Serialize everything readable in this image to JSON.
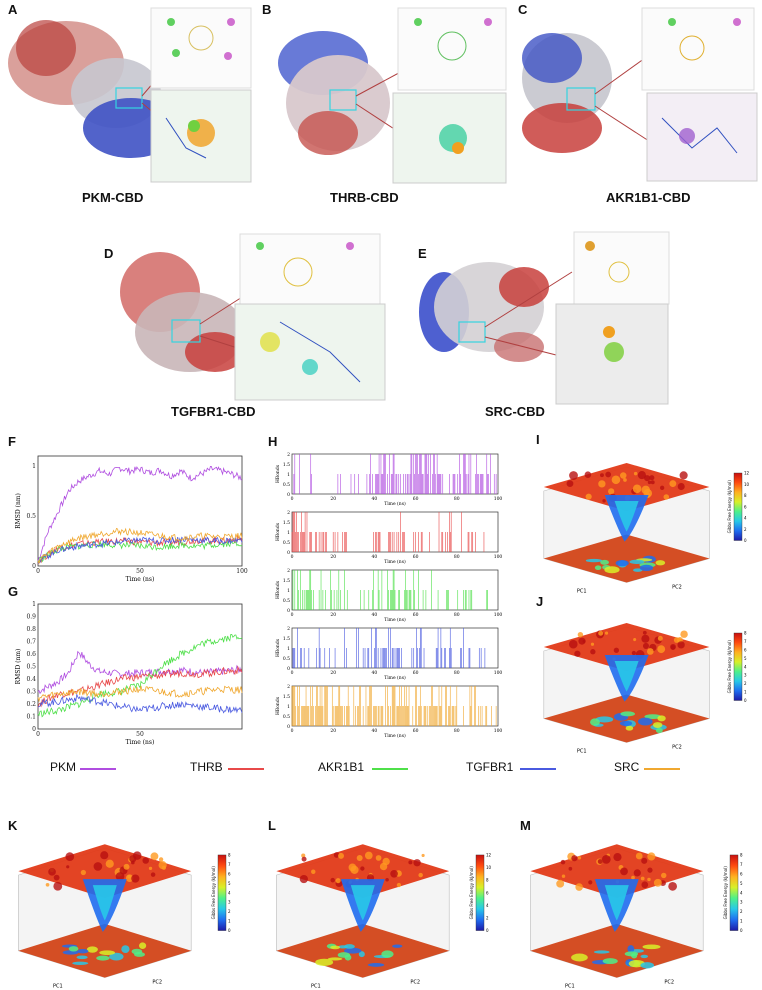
{
  "panels": {
    "A": {
      "letter": "A",
      "caption": "PKM-CBD"
    },
    "B": {
      "letter": "B",
      "caption": "THRB-CBD"
    },
    "C": {
      "letter": "C",
      "caption": "AKR1B1-CBD"
    },
    "D": {
      "letter": "D",
      "caption": "TGFBR1-CBD"
    },
    "E": {
      "letter": "E",
      "caption": "SRC-CBD"
    },
    "F": {
      "letter": "F"
    },
    "G": {
      "letter": "G"
    },
    "H": {
      "letter": "H"
    },
    "I": {
      "letter": "I"
    },
    "J": {
      "letter": "J"
    },
    "K": {
      "letter": "K"
    },
    "L": {
      "letter": "L"
    },
    "M": {
      "letter": "M"
    }
  },
  "colors": {
    "PKM": "#b04ee0",
    "THRB": "#e84a4a",
    "AKR1B1": "#4fe04a",
    "TGFBR1": "#4a5ae0",
    "SRC": "#f0a830",
    "protein_red": "#c8403c",
    "protein_blue": "#2f44c8",
    "protein_gray": "#c8c8c8"
  },
  "legend": [
    {
      "name": "PKM",
      "color": "#b04ee0"
    },
    {
      "name": "THRB",
      "color": "#e84a4a"
    },
    {
      "name": "AKR1B1",
      "color": "#4fe04a"
    },
    {
      "name": "TGFBR1",
      "color": "#4a5ae0"
    },
    {
      "name": "SRC",
      "color": "#f0a830"
    }
  ],
  "chart_data": [
    {
      "panel": "F",
      "type": "line",
      "xlabel": "Time (ns)",
      "ylabel": "RMSD (nm)",
      "xlim": [
        0,
        100
      ],
      "ylim": [
        0,
        1.1
      ],
      "x_ticks": [
        "0",
        "50",
        "100"
      ],
      "y_ticks": [
        "0",
        "0.5",
        "1"
      ],
      "series": [
        {
          "name": "PKM",
          "x": [
            0,
            5,
            10,
            15,
            20,
            25,
            30,
            35,
            40,
            45,
            50,
            55,
            60,
            65,
            70,
            75,
            80,
            85,
            90,
            95,
            100
          ],
          "values": [
            0.05,
            0.35,
            0.55,
            0.75,
            0.85,
            0.9,
            0.95,
            0.92,
            0.98,
            0.95,
            0.97,
            0.93,
            0.96,
            0.9,
            0.95,
            0.88,
            0.92,
            0.97,
            0.95,
            0.92,
            0.88
          ]
        },
        {
          "name": "THRB",
          "x": [
            0,
            10,
            20,
            30,
            40,
            50,
            60,
            70,
            80,
            90,
            100
          ],
          "values": [
            0.05,
            0.18,
            0.22,
            0.24,
            0.25,
            0.24,
            0.23,
            0.24,
            0.26,
            0.25,
            0.27
          ]
        },
        {
          "name": "AKR1B1",
          "x": [
            0,
            10,
            20,
            30,
            40,
            50,
            60,
            70,
            80,
            90,
            100
          ],
          "values": [
            0.05,
            0.17,
            0.2,
            0.22,
            0.21,
            0.2,
            0.19,
            0.21,
            0.2,
            0.22,
            0.23
          ]
        },
        {
          "name": "TGFBR1",
          "x": [
            0,
            10,
            20,
            30,
            40,
            50,
            60,
            70,
            80,
            90,
            100
          ],
          "values": [
            0.05,
            0.16,
            0.2,
            0.22,
            0.24,
            0.26,
            0.25,
            0.27,
            0.26,
            0.25,
            0.26
          ]
        },
        {
          "name": "SRC",
          "x": [
            0,
            10,
            20,
            30,
            40,
            50,
            60,
            70,
            80,
            90,
            100
          ],
          "values": [
            0.05,
            0.2,
            0.28,
            0.32,
            0.35,
            0.33,
            0.3,
            0.28,
            0.3,
            0.29,
            0.3
          ]
        }
      ]
    },
    {
      "panel": "G",
      "type": "line",
      "xlabel": "Time (ns)",
      "ylabel": "RMSD (nm)",
      "xlim": [
        0,
        100
      ],
      "ylim": [
        0,
        1.0
      ],
      "x_ticks": [
        "0",
        "50"
      ],
      "y_ticks": [
        "0",
        "0.1",
        "0.2",
        "0.3",
        "0.4",
        "0.5",
        "0.6",
        "0.7",
        "0.8",
        "0.9",
        "1"
      ],
      "series": [
        {
          "name": "PKM",
          "x": [
            0,
            10,
            15,
            20,
            25,
            30,
            40,
            50,
            60,
            70,
            80,
            90,
            100
          ],
          "values": [
            0.3,
            0.38,
            0.45,
            0.62,
            0.52,
            0.46,
            0.44,
            0.45,
            0.46,
            0.47,
            0.45,
            0.46,
            0.48
          ]
        },
        {
          "name": "THRB",
          "x": [
            0,
            10,
            20,
            30,
            40,
            50,
            60,
            70,
            80,
            90,
            100
          ],
          "values": [
            0.2,
            0.28,
            0.3,
            0.35,
            0.4,
            0.42,
            0.43,
            0.45,
            0.44,
            0.46,
            0.47
          ]
        },
        {
          "name": "AKR1B1",
          "x": [
            0,
            10,
            20,
            30,
            40,
            50,
            60,
            70,
            80,
            90,
            100
          ],
          "values": [
            0.12,
            0.15,
            0.2,
            0.28,
            0.3,
            0.35,
            0.5,
            0.6,
            0.68,
            0.72,
            0.75
          ]
        },
        {
          "name": "TGFBR1",
          "x": [
            0,
            10,
            20,
            30,
            40,
            50,
            60,
            70,
            80,
            90,
            100
          ],
          "values": [
            0.2,
            0.22,
            0.25,
            0.22,
            0.18,
            0.15,
            0.18,
            0.2,
            0.18,
            0.16,
            0.15
          ]
        },
        {
          "name": "SRC",
          "x": [
            0,
            10,
            20,
            30,
            40,
            50,
            60,
            70,
            80,
            90,
            100
          ],
          "values": [
            0.25,
            0.28,
            0.3,
            0.28,
            0.3,
            0.32,
            0.3,
            0.28,
            0.3,
            0.32,
            0.31
          ]
        }
      ]
    },
    {
      "panel": "H",
      "type": "bar",
      "xlabel": "Time (ns)",
      "ylabel": "HBonds",
      "xlim": [
        0,
        100
      ],
      "ylim": [
        0,
        2
      ],
      "x_ticks": [
        "0",
        "20",
        "40",
        "60",
        "80",
        "100"
      ],
      "y_ticks": [
        "0",
        "0.5",
        "1",
        "1.5",
        "2"
      ],
      "series": [
        {
          "name": "PKM",
          "density": [
            0.3,
            0.2,
            0.1,
            0.1,
            0.2,
            0.1,
            0.1,
            0.3,
            0.6,
            0.7,
            0.6,
            0.7,
            0.8,
            0.7,
            0.7,
            0.6,
            0.6,
            0.5,
            0.4,
            0.3
          ],
          "max_level": 2
        },
        {
          "name": "THRB",
          "density": [
            0.8,
            0.7,
            0.4,
            0.4,
            0.3,
            0.3,
            0.2,
            0.1,
            0.4,
            0.4,
            0.4,
            0.3,
            0.3,
            0.2,
            0.3,
            0.3,
            0.2,
            0.2,
            0.1,
            0.1
          ],
          "max_level": 2
        },
        {
          "name": "AKR1B1",
          "density": [
            0.7,
            0.5,
            0.3,
            0.2,
            0.2,
            0.2,
            0.3,
            0.2,
            0.3,
            0.5,
            0.4,
            0.6,
            0.4,
            0.3,
            0.2,
            0.2,
            0.2,
            0.2,
            0.1,
            0.1
          ],
          "max_level": 2
        },
        {
          "name": "TGFBR1",
          "density": [
            0.4,
            0.3,
            0.3,
            0.2,
            0.2,
            0.2,
            0.3,
            0.3,
            0.6,
            0.5,
            0.4,
            0.5,
            0.5,
            0.3,
            0.6,
            0.4,
            0.5,
            0.3,
            0.2,
            0.0
          ],
          "max_level": 2
        },
        {
          "name": "SRC",
          "density": [
            0.8,
            0.9,
            0.8,
            0.8,
            0.7,
            0.6,
            0.6,
            0.7,
            0.7,
            0.7,
            0.7,
            0.8,
            0.7,
            0.6,
            0.7,
            0.6,
            0.6,
            0.6,
            0.5,
            0.2
          ],
          "max_level": 2
        }
      ]
    },
    {
      "panel": "I",
      "type": "heatmap",
      "xlabel": "PC1",
      "ylabel": "PC2",
      "zlabel": "Gibbs Free Energy (kJ/mol)",
      "colorbar_ticks": [
        "0",
        "2",
        "4",
        "6",
        "8",
        "10",
        "12"
      ]
    },
    {
      "panel": "J",
      "type": "heatmap",
      "xlabel": "PC1",
      "ylabel": "PC2",
      "zlabel": "Gibbs Free Energy (kJ/mol)",
      "colorbar_ticks": [
        "0",
        "1",
        "2",
        "3",
        "4",
        "5",
        "6",
        "7",
        "8"
      ]
    },
    {
      "panel": "K",
      "type": "heatmap",
      "xlabel": "PC1",
      "ylabel": "PC2",
      "zlabel": "Gibbs Free Energy (kJ/mol)",
      "colorbar_ticks": [
        "0",
        "1",
        "2",
        "3",
        "4",
        "5",
        "6",
        "7",
        "8"
      ]
    },
    {
      "panel": "L",
      "type": "heatmap",
      "xlabel": "PC1",
      "ylabel": "PC2",
      "zlabel": "Gibbs Free Energy (kJ/mol)",
      "colorbar_ticks": [
        "0",
        "2",
        "4",
        "6",
        "8",
        "10",
        "12"
      ]
    },
    {
      "panel": "M",
      "type": "heatmap",
      "xlabel": "PC1",
      "ylabel": "PC2",
      "zlabel": "Gibbs Free Energy (kJ/mol)",
      "colorbar_ticks": [
        "0",
        "1",
        "2",
        "3",
        "4",
        "5",
        "6",
        "7",
        "8"
      ]
    }
  ]
}
